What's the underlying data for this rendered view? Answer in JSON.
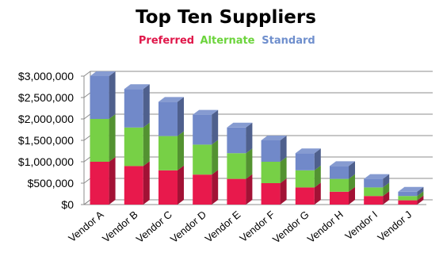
{
  "chart_data": {
    "type": "bar",
    "stacked": true,
    "three_d": true,
    "title": "Top Ten Suppliers",
    "xlabel": "",
    "ylabel": "",
    "ylim": [
      0,
      3000000
    ],
    "y_ticks": [
      "$0",
      "$500,000",
      "$1,000,000",
      "$1,500,000",
      "$2,000,000",
      "$2,500,000",
      "$3,000,000"
    ],
    "y_tick_values": [
      0,
      500000,
      1000000,
      1500000,
      2000000,
      2500000,
      3000000
    ],
    "grid": true,
    "legend_position": "top-center",
    "categories": [
      "Vendor A",
      "Vendor B",
      "Vendor C",
      "Vendor D",
      "Vendor E",
      "Vendor F",
      "Vendor G",
      "Vendor H",
      "Vendor I",
      "Vendor J"
    ],
    "series": [
      {
        "name": "Preferred",
        "color": "#e8194c",
        "values": [
          1000000,
          900000,
          800000,
          700000,
          600000,
          500000,
          400000,
          300000,
          200000,
          100000
        ]
      },
      {
        "name": "Alternate",
        "color": "#77d046",
        "values": [
          1000000,
          900000,
          800000,
          700000,
          600000,
          500000,
          400000,
          300000,
          200000,
          100000
        ]
      },
      {
        "name": "Standard",
        "color": "#7189c9",
        "values": [
          1000000,
          900000,
          800000,
          700000,
          600000,
          500000,
          400000,
          300000,
          200000,
          100000
        ]
      }
    ],
    "legend_colors": {
      "Preferred": "#e0174a",
      "Alternate": "#6cd43c",
      "Standard": "#6f8fcd"
    }
  }
}
